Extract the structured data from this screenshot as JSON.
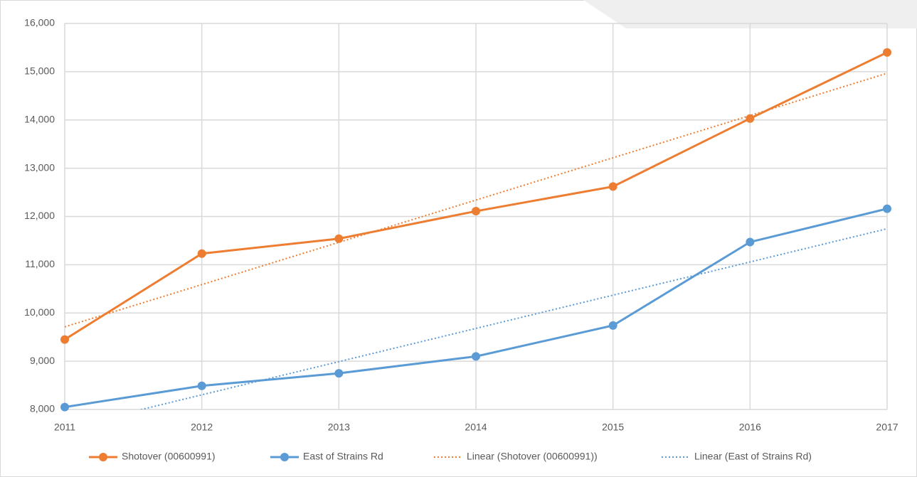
{
  "chart_data": {
    "type": "line",
    "x": [
      2011,
      2012,
      2013,
      2014,
      2015,
      2016,
      2017
    ],
    "xlim": [
      2011,
      2017
    ],
    "xticks": [
      2011,
      2012,
      2013,
      2014,
      2015,
      2016,
      2017
    ],
    "ylim": [
      8000,
      16000
    ],
    "yticks": [
      {
        "value": 8000,
        "label": "8,000"
      },
      {
        "value": 9000,
        "label": "9,000"
      },
      {
        "value": 10000,
        "label": "10,000"
      },
      {
        "value": 11000,
        "label": "11,000"
      },
      {
        "value": 12000,
        "label": "12,000"
      },
      {
        "value": 13000,
        "label": "13,000"
      },
      {
        "value": 14000,
        "label": "14,000"
      },
      {
        "value": 15000,
        "label": "15,000"
      },
      {
        "value": 16000,
        "label": "16,000"
      }
    ],
    "grid": true,
    "legend": "bottom",
    "series": [
      {
        "name": "Shotover (00600991)",
        "color": "#ed7d31",
        "markers": true,
        "dash": "solid",
        "values": [
          9450,
          11230,
          11540,
          12110,
          12620,
          14030,
          15400
        ]
      },
      {
        "name": "East of Strains Rd",
        "color": "#5b9bd5",
        "markers": true,
        "dash": "solid",
        "values": [
          8050,
          8490,
          8750,
          9100,
          9740,
          11470,
          12160
        ]
      },
      {
        "name": "Linear (Shotover (00600991))",
        "color": "#ed7d31",
        "markers": false,
        "dash": "dotted",
        "values": [
          9712,
          10588,
          11464,
          12340,
          13216,
          14092,
          14968
        ]
      },
      {
        "name": "Linear (East of Strains Rd)",
        "color": "#5b9bd5",
        "markers": false,
        "dash": "dotted",
        "values": [
          7614,
          8303,
          8991,
          9680,
          10369,
          11057,
          11746
        ]
      }
    ]
  }
}
